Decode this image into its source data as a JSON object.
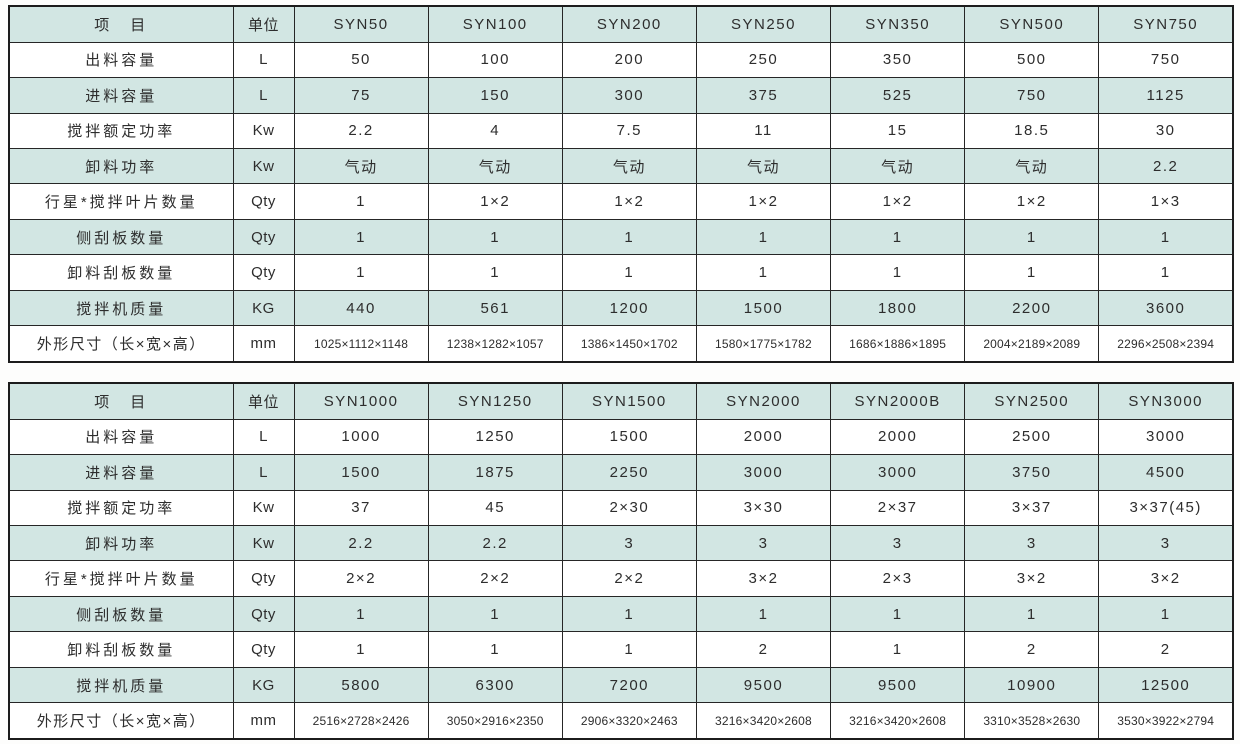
{
  "colors": {
    "band": "#d2e6e3",
    "row_white": "#ffffff",
    "grid_border": "#262626",
    "outer_border": "#1c1c1c",
    "text": "#2d2d2d",
    "page_background": "#fdfdfc"
  },
  "tables": [
    {
      "name": "spec-table-1",
      "header": {
        "item_label": "项　目",
        "unit_label": "单位",
        "models": [
          "SYN50",
          "SYN100",
          "SYN200",
          "SYN250",
          "SYN350",
          "SYN500",
          "SYN750"
        ]
      },
      "rows": [
        {
          "label": "出料容量",
          "unit": "L",
          "values": [
            "50",
            "100",
            "200",
            "250",
            "350",
            "500",
            "750"
          ]
        },
        {
          "label": "进料容量",
          "unit": "L",
          "values": [
            "75",
            "150",
            "300",
            "375",
            "525",
            "750",
            "1125"
          ]
        },
        {
          "label": "搅拌额定功率",
          "unit": "Kw",
          "values": [
            "2.2",
            "4",
            "7.5",
            "11",
            "15",
            "18.5",
            "30"
          ]
        },
        {
          "label": "卸料功率",
          "unit": "Kw",
          "values": [
            "气动",
            "气动",
            "气动",
            "气动",
            "气动",
            "气动",
            "2.2"
          ]
        },
        {
          "label": "行星*搅拌叶片数量",
          "unit": "Qty",
          "values": [
            "1",
            "1×2",
            "1×2",
            "1×2",
            "1×2",
            "1×2",
            "1×3"
          ]
        },
        {
          "label": "侧刮板数量",
          "unit": "Qty",
          "values": [
            "1",
            "1",
            "1",
            "1",
            "1",
            "1",
            "1"
          ]
        },
        {
          "label": "卸料刮板数量",
          "unit": "Qty",
          "values": [
            "1",
            "1",
            "1",
            "1",
            "1",
            "1",
            "1"
          ]
        },
        {
          "label": "搅拌机质量",
          "unit": "KG",
          "values": [
            "440",
            "561",
            "1200",
            "1500",
            "1800",
            "2200",
            "3600"
          ]
        },
        {
          "label": "外形尺寸（长×宽×高）",
          "unit": "mm",
          "values": [
            "1025×1112×1148",
            "1238×1282×1057",
            "1386×1450×1702",
            "1580×1775×1782",
            "1686×1886×1895",
            "2004×2189×2089",
            "2296×2508×2394"
          ]
        }
      ]
    },
    {
      "name": "spec-table-2",
      "header": {
        "item_label": "项　目",
        "unit_label": "单位",
        "models": [
          "SYN1000",
          "SYN1250",
          "SYN1500",
          "SYN2000",
          "SYN2000B",
          "SYN2500",
          "SYN3000"
        ]
      },
      "rows": [
        {
          "label": "出料容量",
          "unit": "L",
          "values": [
            "1000",
            "1250",
            "1500",
            "2000",
            "2000",
            "2500",
            "3000"
          ]
        },
        {
          "label": "进料容量",
          "unit": "L",
          "values": [
            "1500",
            "1875",
            "2250",
            "3000",
            "3000",
            "3750",
            "4500"
          ]
        },
        {
          "label": "搅拌额定功率",
          "unit": "Kw",
          "values": [
            "37",
            "45",
            "2×30",
            "3×30",
            "2×37",
            "3×37",
            "3×37(45)"
          ]
        },
        {
          "label": "卸料功率",
          "unit": "Kw",
          "values": [
            "2.2",
            "2.2",
            "3",
            "3",
            "3",
            "3",
            "3"
          ]
        },
        {
          "label": "行星*搅拌叶片数量",
          "unit": "Qty",
          "values": [
            "2×2",
            "2×2",
            "2×2",
            "3×2",
            "2×3",
            "3×2",
            "3×2"
          ]
        },
        {
          "label": "侧刮板数量",
          "unit": "Qty",
          "values": [
            "1",
            "1",
            "1",
            "1",
            "1",
            "1",
            "1"
          ]
        },
        {
          "label": "卸料刮板数量",
          "unit": "Qty",
          "values": [
            "1",
            "1",
            "1",
            "2",
            "1",
            "2",
            "2"
          ]
        },
        {
          "label": "搅拌机质量",
          "unit": "KG",
          "values": [
            "5800",
            "6300",
            "7200",
            "9500",
            "9500",
            "10900",
            "12500"
          ]
        },
        {
          "label": "外形尺寸（长×宽×高）",
          "unit": "mm",
          "values": [
            "2516×2728×2426",
            "3050×2916×2350",
            "2906×3320×2463",
            "3216×3420×2608",
            "3216×3420×2608",
            "3310×3528×2630",
            "3530×3922×2794"
          ]
        }
      ]
    }
  ]
}
